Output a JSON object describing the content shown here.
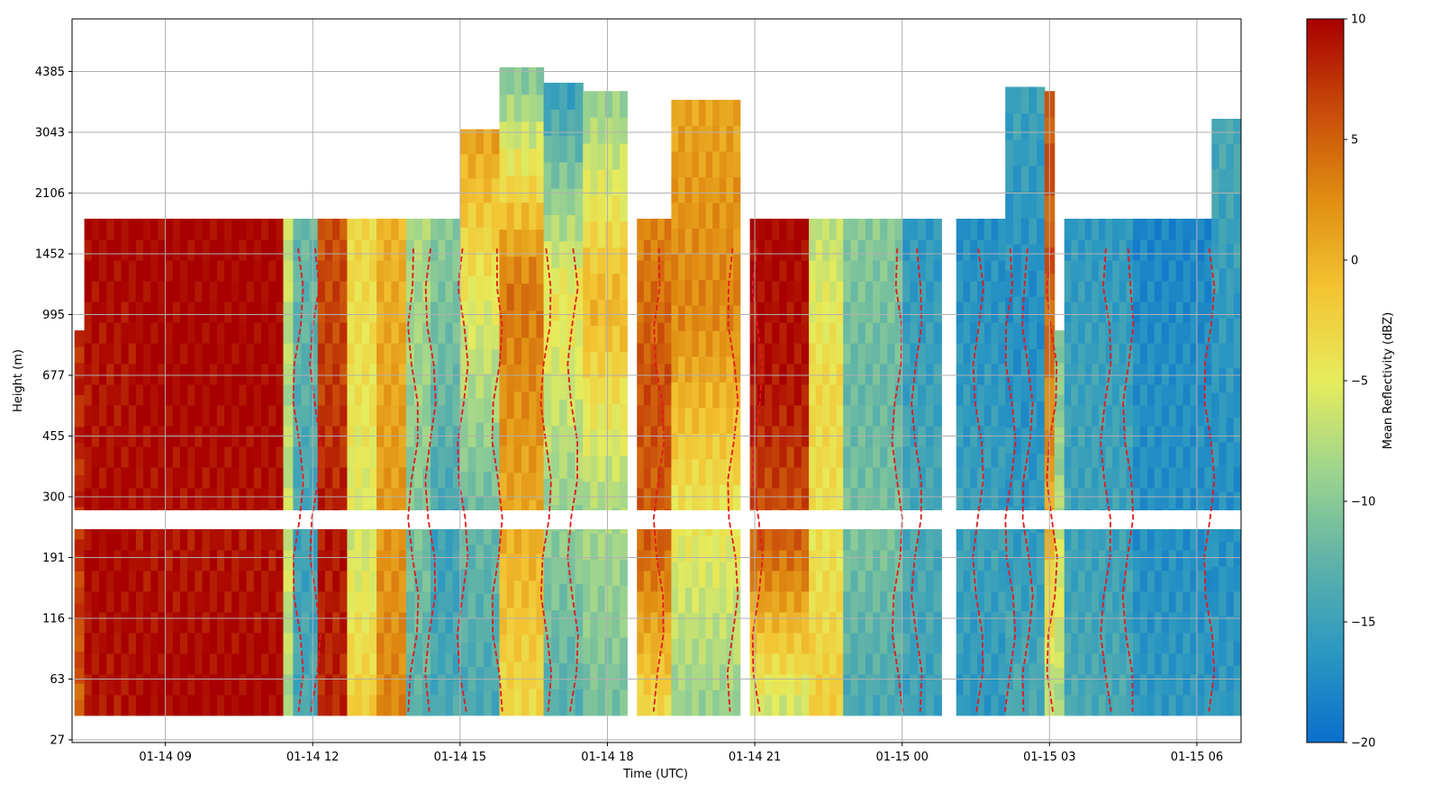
{
  "chart_data": {
    "type": "heatmap",
    "xlabel": "Time (UTC)",
    "ylabel": "Height (m)",
    "colorbar_label": "Mean Reflectivity (dBZ)",
    "x_ticks": [
      "01-14 09",
      "01-14 12",
      "01-14 15",
      "01-14 18",
      "01-14 21",
      "01-15 00",
      "01-15 03",
      "01-15 06"
    ],
    "x_tick_hours": [
      9,
      12,
      15,
      18,
      21,
      24,
      27,
      30
    ],
    "x_range_hours": [
      7.1,
      30.9
    ],
    "y_ticks": [
      "27",
      "63",
      "116",
      "191",
      "300",
      "455",
      "677",
      "995",
      "1452",
      "2106",
      "3043",
      "4385"
    ],
    "y_scale": "nonlinear (ticks evenly spaced)",
    "colorbar_range": [
      -20,
      10
    ],
    "colorbar_ticks": [
      "10",
      "5",
      "0",
      "−5",
      "−10",
      "−15",
      "−20"
    ],
    "colorbar_tick_values": [
      10,
      5,
      0,
      -5,
      -10,
      -15,
      -20
    ],
    "colormap": [
      "#0a6fcc",
      "#2b98c2",
      "#5fb3a8",
      "#9ed48e",
      "#e6ec5c",
      "#f3c433",
      "#e08e12",
      "#c84a0a",
      "#a80000"
    ],
    "contour_style": "dashed red",
    "contour_color": "#e31a1c",
    "grid": true,
    "columns": [
      {
        "start": 7.15,
        "end": 7.35,
        "top": 900,
        "values": [
          5,
          7,
          8,
          8
        ]
      },
      {
        "start": 7.35,
        "end": 8.4,
        "top": 1800,
        "values": [
          9,
          10,
          9,
          10
        ]
      },
      {
        "start": 8.4,
        "end": 11.4,
        "top": 1800,
        "values": [
          10,
          9,
          10,
          10
        ]
      },
      {
        "start": 11.4,
        "end": 11.6,
        "top": 1800,
        "values": [
          -8,
          -6,
          -8,
          -6
        ]
      },
      {
        "start": 11.6,
        "end": 12.1,
        "top": 1800,
        "values": [
          -14,
          -15,
          -13,
          -12
        ]
      },
      {
        "start": 12.1,
        "end": 12.7,
        "top": 1800,
        "values": [
          8,
          9,
          7,
          6
        ]
      },
      {
        "start": 12.7,
        "end": 13.3,
        "top": 1800,
        "values": [
          -2,
          -6,
          -4,
          -3
        ]
      },
      {
        "start": 13.3,
        "end": 13.9,
        "top": 1800,
        "values": [
          3,
          2,
          1,
          0
        ]
      },
      {
        "start": 13.9,
        "end": 14.4,
        "top": 1800,
        "values": [
          -13,
          -11,
          -9,
          -8
        ]
      },
      {
        "start": 14.4,
        "end": 15.0,
        "top": 1800,
        "values": [
          -14,
          -15,
          -12,
          -10
        ]
      },
      {
        "start": 15.0,
        "end": 15.8,
        "top": 3100,
        "values": [
          -14,
          -12,
          -6,
          1
        ]
      },
      {
        "start": 15.8,
        "end": 16.7,
        "top": 4500,
        "values": [
          -3,
          1,
          4,
          -10
        ]
      },
      {
        "start": 16.7,
        "end": 17.5,
        "top": 4100,
        "values": [
          -13,
          -9,
          -4,
          -15
        ]
      },
      {
        "start": 17.5,
        "end": 18.4,
        "top": 3900,
        "values": [
          -11,
          -8,
          0,
          -9
        ]
      },
      {
        "start": 18.6,
        "end": 19.3,
        "top": 1800,
        "values": [
          -3,
          5,
          6,
          3
        ]
      },
      {
        "start": 19.3,
        "end": 20.7,
        "top": 3700,
        "values": [
          -9,
          -4,
          3,
          1
        ]
      },
      {
        "start": 20.9,
        "end": 22.1,
        "top": 1800,
        "values": [
          -6,
          5,
          9,
          10
        ]
      },
      {
        "start": 22.1,
        "end": 22.8,
        "top": 1800,
        "values": [
          -2,
          -4,
          -3,
          -7
        ]
      },
      {
        "start": 22.8,
        "end": 24.0,
        "top": 1800,
        "values": [
          -14,
          -11,
          -12,
          -10
        ]
      },
      {
        "start": 24.0,
        "end": 24.8,
        "top": 1800,
        "values": [
          -15,
          -14,
          -15,
          -16
        ]
      },
      {
        "start": 25.1,
        "end": 26.1,
        "top": 1800,
        "values": [
          -16,
          -15,
          -16,
          -17
        ]
      },
      {
        "start": 26.1,
        "end": 26.9,
        "top": 4000,
        "values": [
          -14,
          -16,
          -17,
          -15
        ]
      },
      {
        "start": 26.9,
        "end": 27.1,
        "top": 3900,
        "values": [
          -7,
          1,
          5,
          6
        ]
      },
      {
        "start": 27.1,
        "end": 27.3,
        "top": 900,
        "values": [
          -8,
          -5,
          -9,
          -10
        ]
      },
      {
        "start": 27.3,
        "end": 28.7,
        "top": 1800,
        "values": [
          -14,
          -15,
          -15,
          -16
        ]
      },
      {
        "start": 28.7,
        "end": 30.3,
        "top": 1800,
        "values": [
          -16,
          -17,
          -17,
          -18
        ]
      },
      {
        "start": 30.3,
        "end": 30.9,
        "top": 3300,
        "values": [
          -16,
          -17,
          -16,
          -14
        ]
      }
    ]
  }
}
